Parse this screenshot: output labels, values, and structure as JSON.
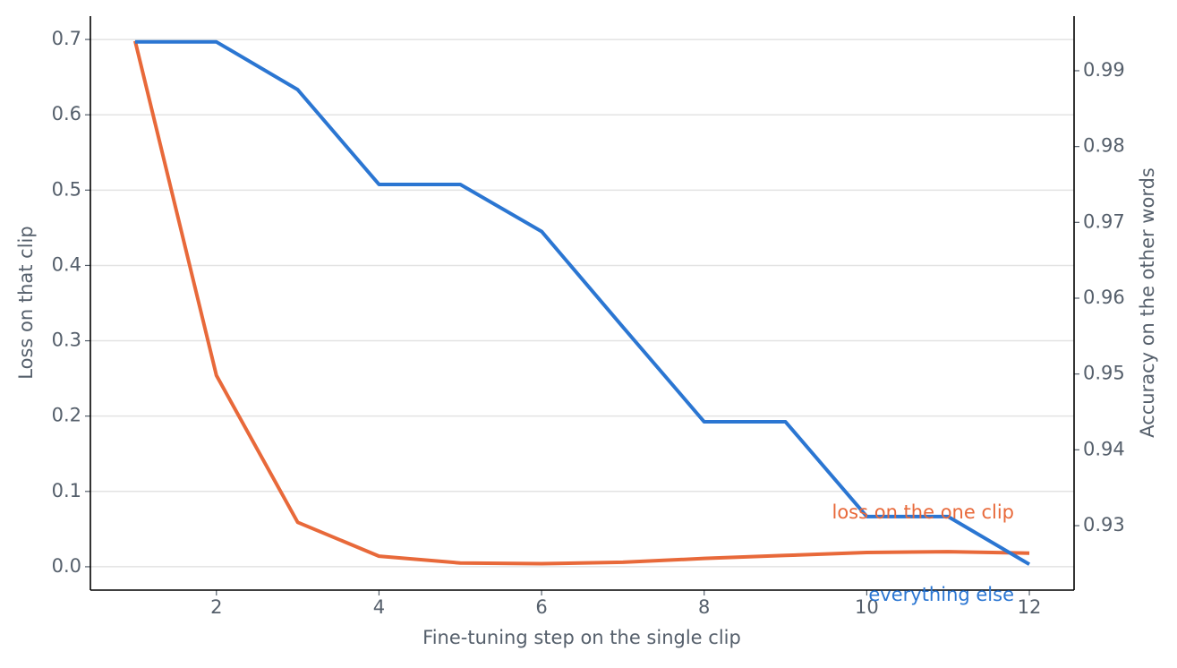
{
  "chart_data": {
    "type": "line",
    "x_label": "Fine-tuning step on the single clip",
    "y_label": "Loss on that clip",
    "y2_label": "Accuracy on the other words",
    "x": [
      1,
      2,
      3,
      4,
      5,
      6,
      7,
      8,
      9,
      10,
      11,
      12
    ],
    "xlim": [
      0.45,
      12.55
    ],
    "xticks": [
      2,
      4,
      6,
      8,
      10,
      12
    ],
    "ylim": [
      -0.031,
      0.731
    ],
    "yticks": [
      0.0,
      0.1,
      0.2,
      0.3,
      0.4,
      0.5,
      0.6,
      0.7
    ],
    "y2lim": [
      0.9215,
      0.9972
    ],
    "y2ticks": [
      0.93,
      0.94,
      0.95,
      0.96,
      0.97,
      0.98,
      0.99
    ],
    "grid": true,
    "series": [
      {
        "name": "loss on the one clip",
        "color": "#e8693a",
        "axis": "y",
        "values": [
          0.698,
          0.254,
          0.059,
          0.014,
          0.005,
          0.004,
          0.006,
          0.011,
          0.015,
          0.019,
          0.02,
          0.018
        ]
      },
      {
        "name": "everything else",
        "color": "#2b76d2",
        "axis": "y2",
        "values": [
          0.9938,
          0.9938,
          0.9875,
          0.975,
          0.975,
          0.9688,
          0.9562,
          0.9437,
          0.9437,
          0.9312,
          0.9312,
          0.9249
        ]
      }
    ]
  }
}
